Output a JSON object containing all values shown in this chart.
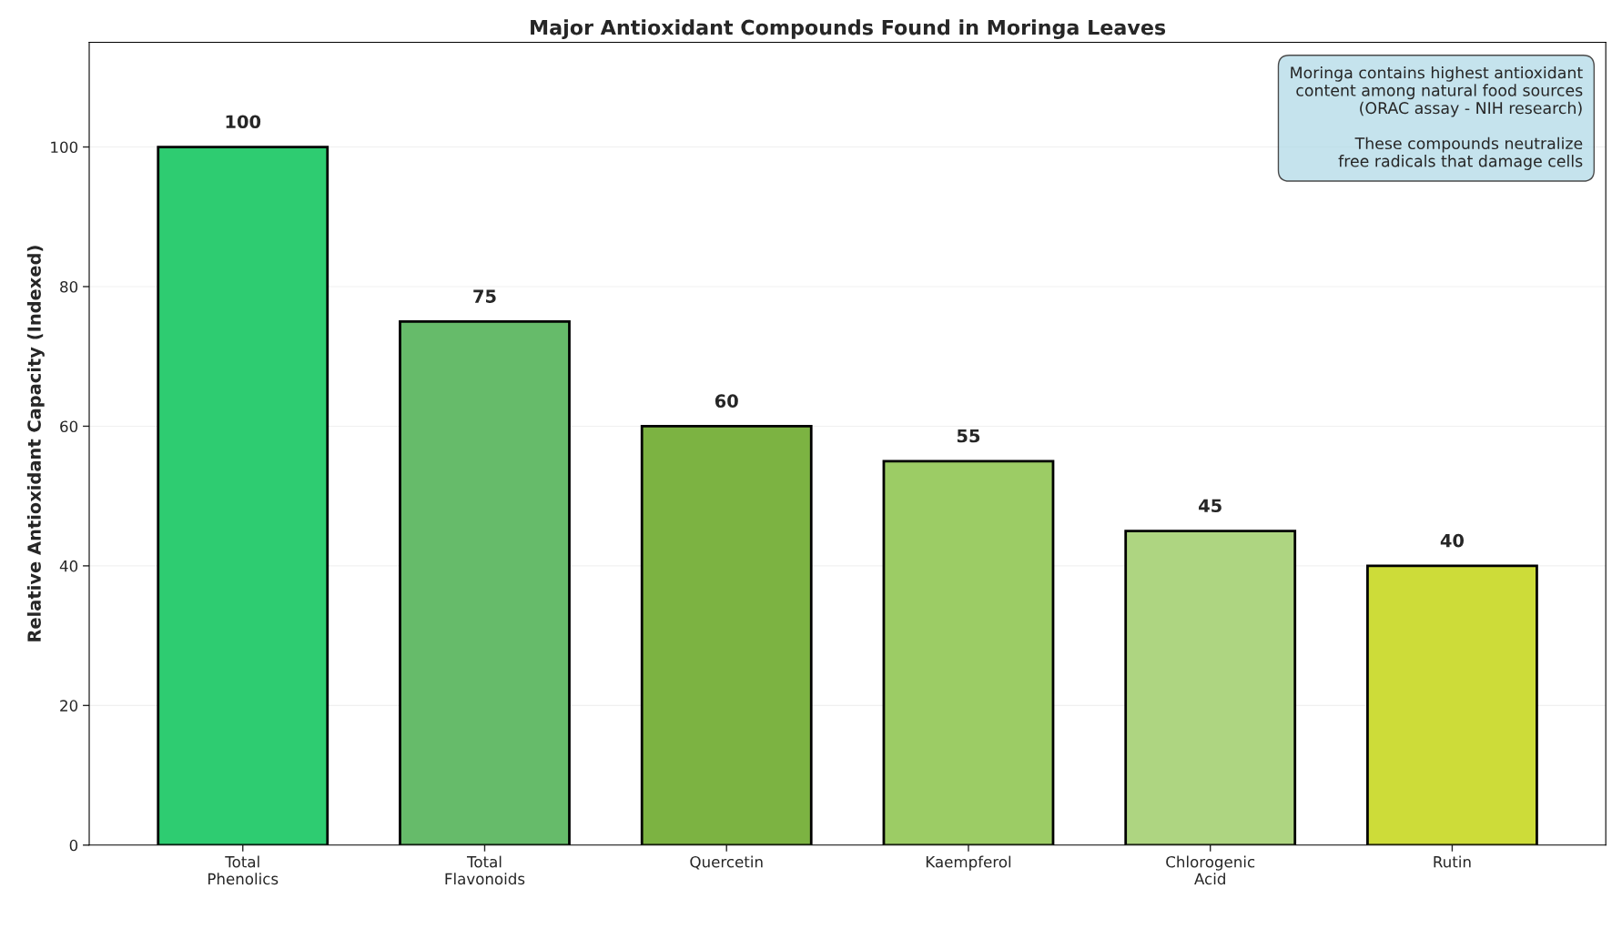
{
  "chart_data": {
    "type": "bar",
    "title": "Major Antioxidant Compounds Found in Moringa Leaves",
    "ylabel": "Relative Antioxidant Capacity (Indexed)",
    "categories": [
      "Total\nPhenolics",
      "Total\nFlavonoids",
      "Quercetin",
      "Kaempferol",
      "Chlorogenic\nAcid",
      "Rutin"
    ],
    "values": [
      100,
      75,
      60,
      55,
      45,
      40
    ],
    "colors": [
      "#2ecc71",
      "#66bb6a",
      "#7cb342",
      "#9ccc65",
      "#aed581",
      "#cddc39"
    ],
    "ylim": [
      0,
      115
    ],
    "yticks": [
      0,
      20,
      40,
      60,
      80,
      100
    ],
    "grid": "y",
    "data_labels": true,
    "annotations": [
      "Moringa contains highest antioxidant\ncontent among natural food sources\n(ORAC assay - NIH research)\n\nThese compounds neutralize\nfree radicals that damage cells"
    ]
  }
}
